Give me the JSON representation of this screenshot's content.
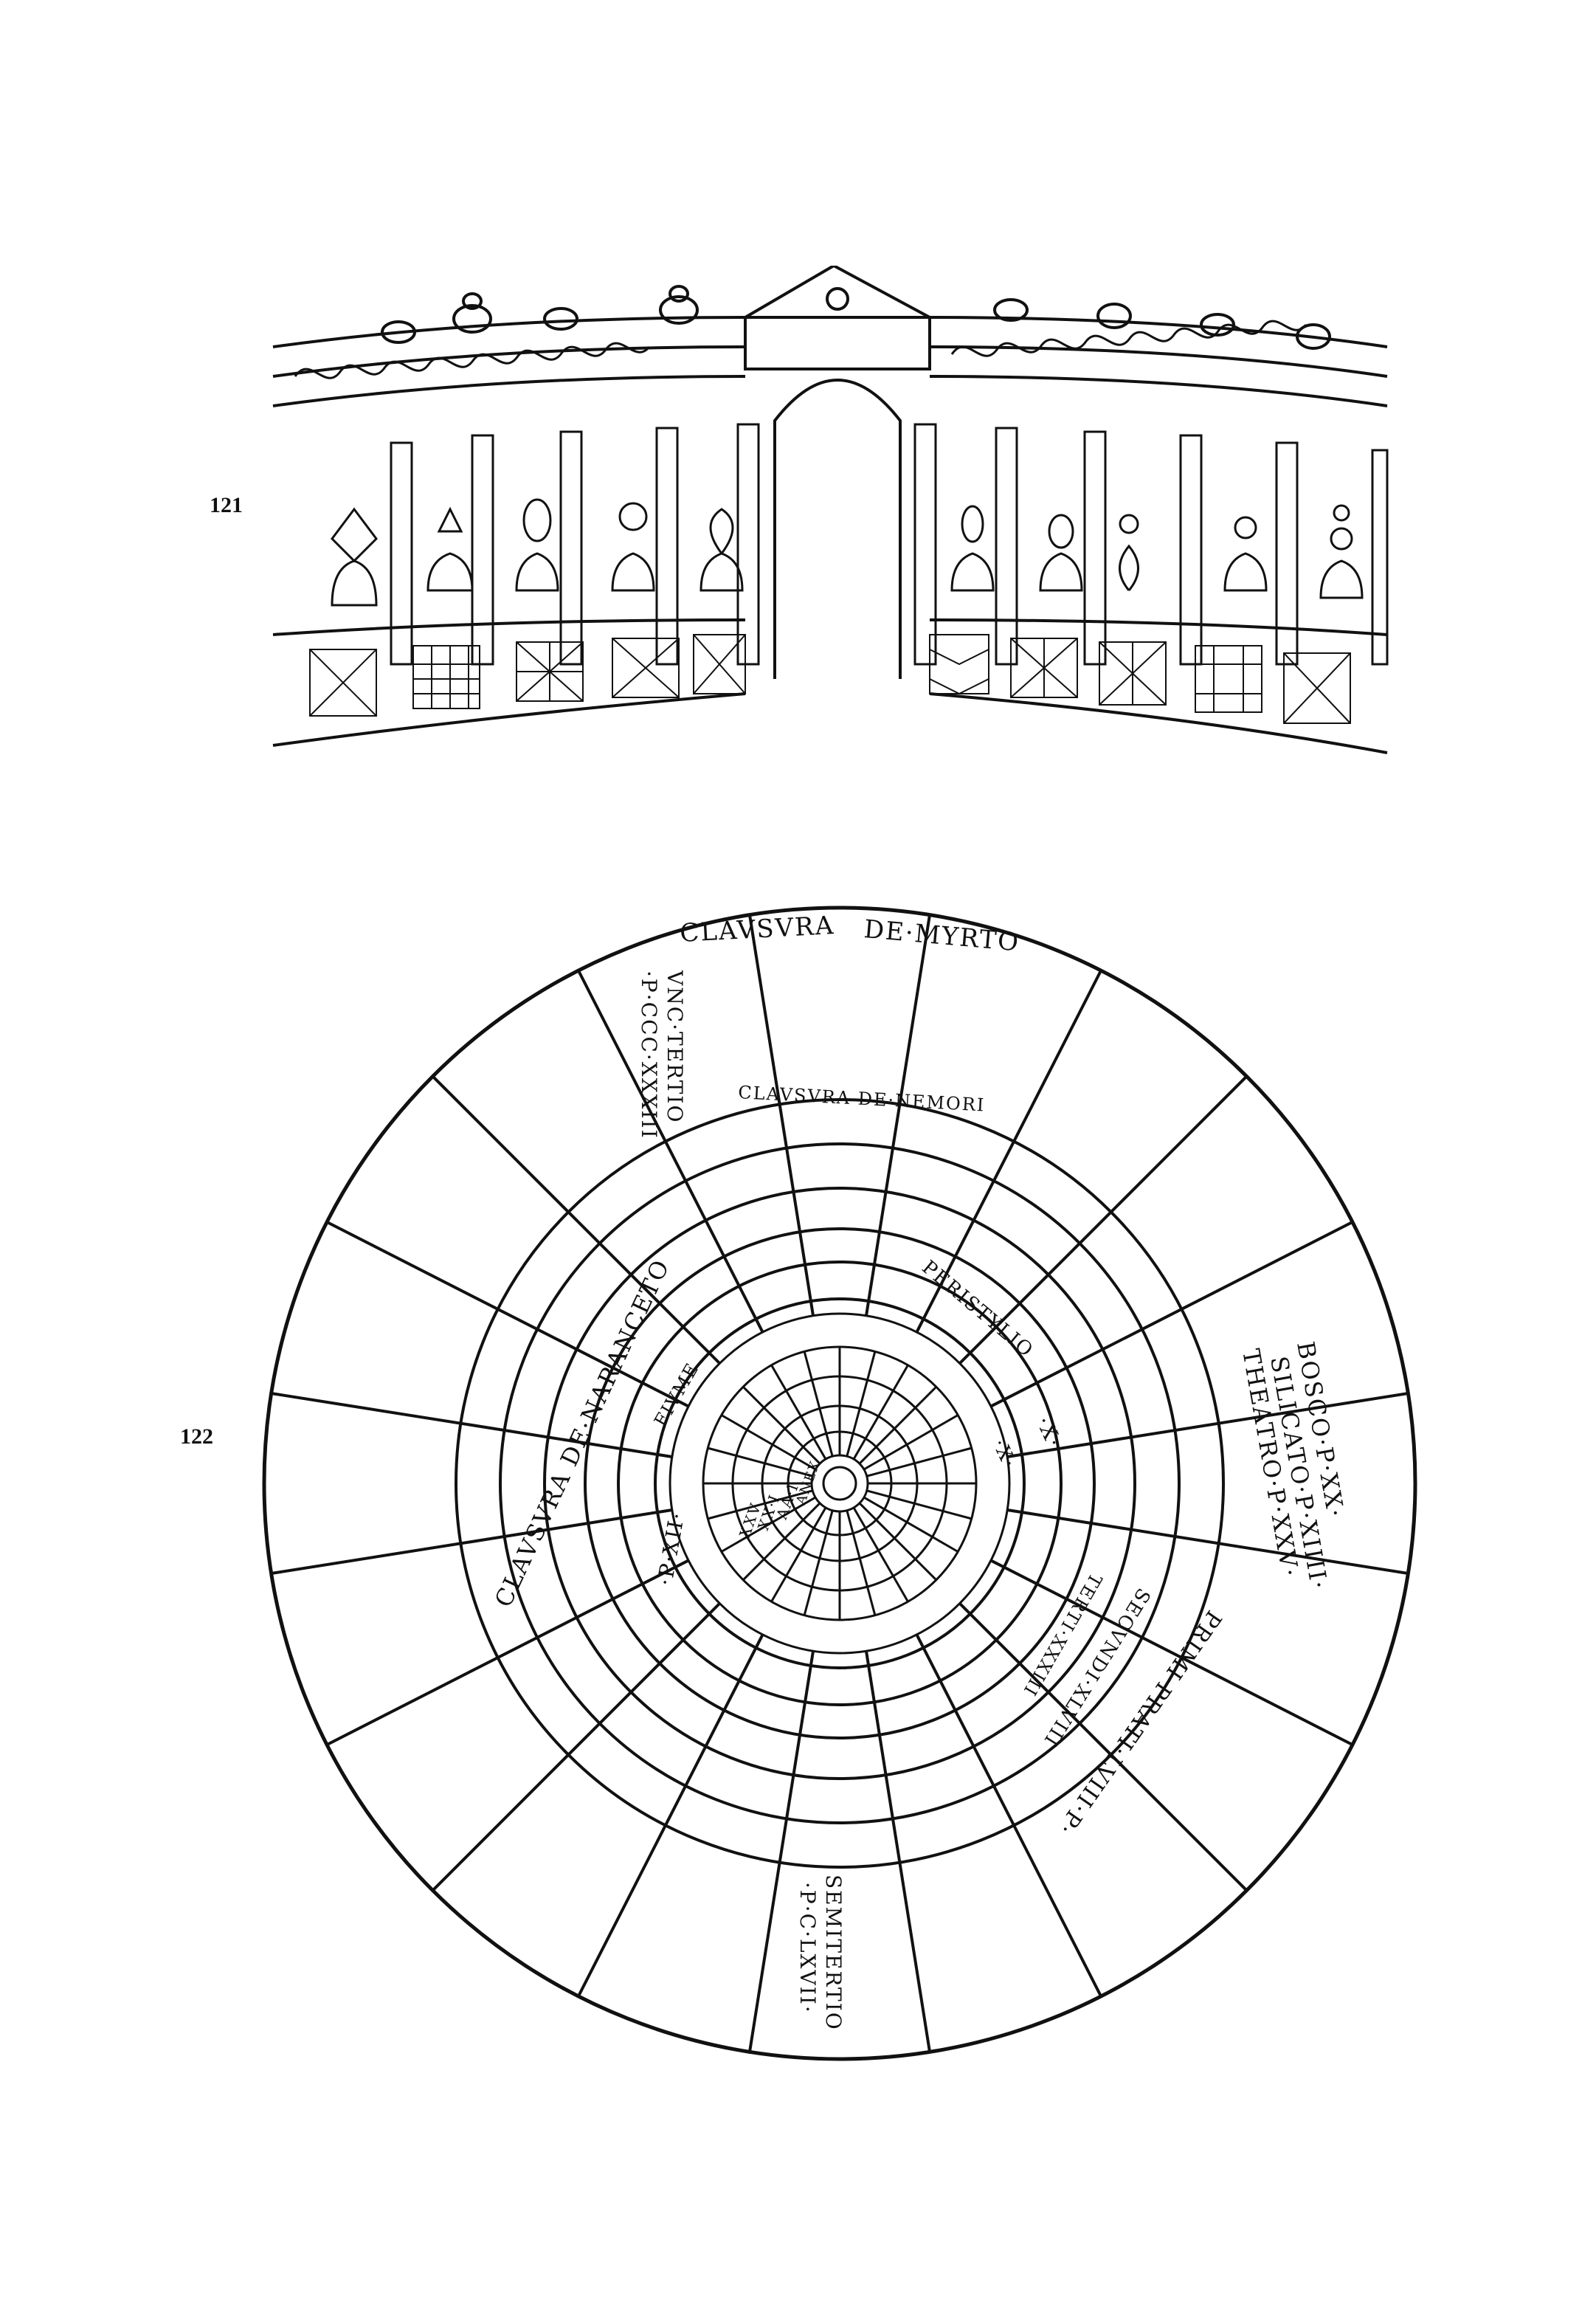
{
  "figures": [
    {
      "number": "121"
    },
    {
      "number": "122"
    }
  ],
  "plan": {
    "labels": {
      "clausura_myrto_a": "CLAVSVRA",
      "clausura_myrto_b": "DE·MYRTO",
      "nemori": "CLAVSVRA DE·NEMORI",
      "unc_tertio_a": "VNC·TERTIO",
      "unc_tertio_b": "·P·CCC·XXXIII",
      "naranceto": "CLAVSVRA DE·NARANCETO",
      "fiume": "FIVME",
      "peristylio": "PERISTYLIO",
      "x_upper": "·X·",
      "x_inner": "·X·",
      "pxii": "·P·XII·",
      "bosco": "BOSCO·P·XX·",
      "silicato": "SILICATO·P·XIIII·",
      "theatro": "THEATRO·P·XXV·",
      "terti": "TERTI·XXXIII",
      "secvndi": "SECVNDI·XLVIII",
      "primi": "PRIMI·PRATI·LVIII·P·",
      "semitertio_a": "SEMITERTIO",
      "semitertio_b": "·P·C·LXVII·",
      "inner_a": "XXV",
      "inner_b": "XX·I",
      "inner_c": "AA·I",
      "inner_d": "ANEX"
    }
  }
}
